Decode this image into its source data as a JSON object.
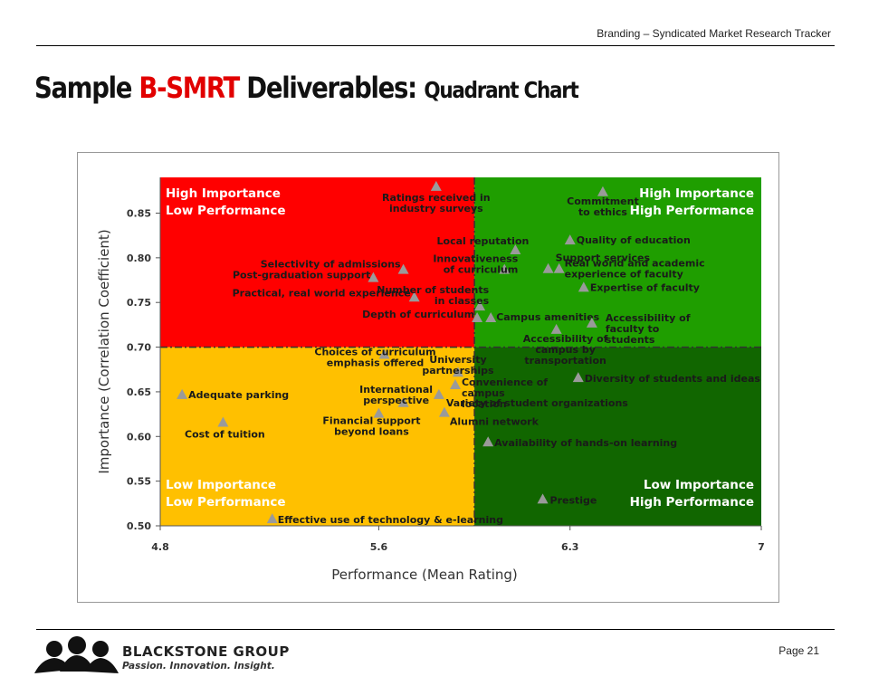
{
  "header": {
    "tracker_title": "Branding – Syndicated Market Research Tracker"
  },
  "slide": {
    "title_part1": "Sample ",
    "title_accent": "B-SMRT",
    "title_part2": " Deliverables:",
    "title_sub": "Quadrant Chart"
  },
  "footer": {
    "page_label": "Page  21",
    "logo_name": "BLACKSTONE GROUP",
    "logo_tagline": "Passion. Innovation. Insight."
  },
  "colors": {
    "top_left": "#ff0000",
    "top_right": "#1f9e00",
    "bottom_left": "#ffc000",
    "bottom_right": "#116600",
    "marker": "#9a9a9a",
    "title_accent": "#e10000"
  },
  "chart_data": {
    "type": "scatter",
    "xlabel": "Performance (Mean Rating)",
    "ylabel": "Importance (Correlation Coefficient)",
    "xlim": [
      4.8,
      7
    ],
    "ylim": [
      0.5,
      0.89
    ],
    "xticks": [
      4.8,
      5.6,
      6.3,
      7
    ],
    "yticks": [
      0.5,
      0.55,
      0.6,
      0.65,
      0.7,
      0.75,
      0.8,
      0.85
    ],
    "x_divider": 5.95,
    "y_divider": 0.7,
    "quadrants": {
      "top_left": [
        "High Importance",
        "Low Performance"
      ],
      "top_right": [
        "High Importance",
        "High Performance"
      ],
      "bottom_left": [
        "Low Importance",
        "Low Performance"
      ],
      "bottom_right": [
        "Low Importance",
        "High Performance"
      ]
    },
    "points": [
      {
        "label": "Ratings received in industry surveys",
        "x": 5.81,
        "y": 0.88
      },
      {
        "label": "Selectivity of admissions",
        "x": 5.69,
        "y": 0.787
      },
      {
        "label": "Post-graduation support",
        "x": 5.58,
        "y": 0.778
      },
      {
        "label": "Practical, real world experience",
        "x": 5.73,
        "y": 0.756
      },
      {
        "label": "Depth of curriculum",
        "x": 5.96,
        "y": 0.733
      },
      {
        "label": "Local reputation",
        "x": 6.1,
        "y": 0.809
      },
      {
        "label": "Innovativeness of curriculum",
        "x": 6.06,
        "y": 0.787
      },
      {
        "label": "Number of students in classes",
        "x": 5.97,
        "y": 0.746
      },
      {
        "label": "Commitment to ethics",
        "x": 6.42,
        "y": 0.874
      },
      {
        "label": "Quality of education",
        "x": 6.3,
        "y": 0.82
      },
      {
        "label": "Support services",
        "x": 6.22,
        "y": 0.788
      },
      {
        "label": "Real world and academic experience of faculty",
        "x": 6.26,
        "y": 0.788
      },
      {
        "label": "Expertise of faculty",
        "x": 6.35,
        "y": 0.767
      },
      {
        "label": "Campus amenities",
        "x": 6.01,
        "y": 0.733
      },
      {
        "label": "Accessibility of faculty to students",
        "x": 6.38,
        "y": 0.727
      },
      {
        "label": "Accessibility of campus by transportation",
        "x": 6.25,
        "y": 0.72
      },
      {
        "label": "Choices of curriculum emphasis offered",
        "x": 5.62,
        "y": 0.692
      },
      {
        "label": "University partnerships",
        "x": 5.89,
        "y": 0.672
      },
      {
        "label": "Convenience of campus location",
        "x": 5.88,
        "y": 0.658
      },
      {
        "label": "International perspective",
        "x": 5.69,
        "y": 0.638
      },
      {
        "label": "Variety of student organizations",
        "x": 5.82,
        "y": 0.647
      },
      {
        "label": "Alumni network",
        "x": 5.84,
        "y": 0.627
      },
      {
        "label": "Financial support beyond loans",
        "x": 5.6,
        "y": 0.626
      },
      {
        "label": "Adequate parking",
        "x": 4.88,
        "y": 0.647
      },
      {
        "label": "Cost of tuition",
        "x": 5.03,
        "y": 0.616
      },
      {
        "label": "Diversity of students and ideas",
        "x": 6.33,
        "y": 0.666
      },
      {
        "label": "Availability of hands-on learning",
        "x": 6.0,
        "y": 0.594
      },
      {
        "label": "Prestige",
        "x": 6.2,
        "y": 0.53
      },
      {
        "label": "Effective use of technology & e-learning",
        "x": 5.21,
        "y": 0.508
      }
    ]
  }
}
